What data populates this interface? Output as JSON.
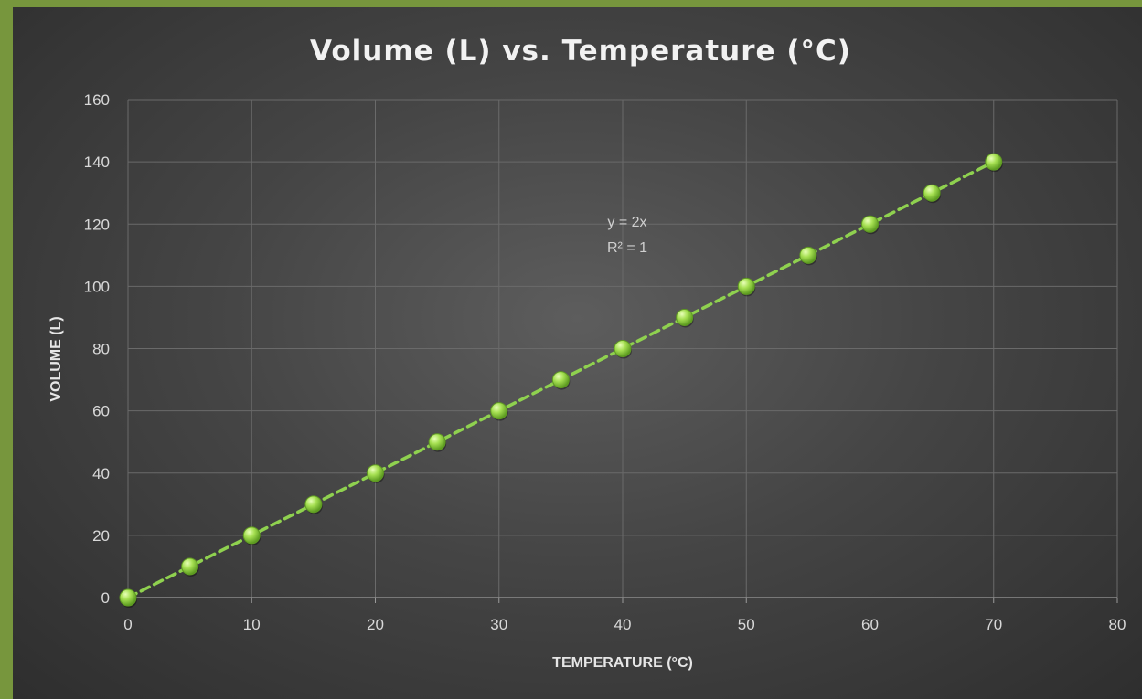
{
  "chart_data": {
    "type": "scatter",
    "title": "Volume (L) vs. Temperature (°C)",
    "xlabel": "TEMPERATURE (°C)",
    "ylabel": "VOLUME (L)",
    "xlim": [
      0,
      80
    ],
    "ylim": [
      0,
      160
    ],
    "x_ticks": [
      "0",
      "10",
      "20",
      "30",
      "40",
      "50",
      "60",
      "70",
      "80"
    ],
    "y_ticks": [
      "0",
      "20",
      "40",
      "60",
      "80",
      "100",
      "120",
      "140",
      "160"
    ],
    "grid": true,
    "series": [
      {
        "x": [
          0,
          5,
          10,
          15,
          20,
          25,
          30,
          35,
          40,
          45,
          50,
          55,
          60,
          65,
          70
        ],
        "y": [
          0,
          10,
          20,
          30,
          40,
          50,
          60,
          70,
          80,
          90,
          100,
          110,
          120,
          130,
          140
        ],
        "color": "#9bd94a"
      }
    ],
    "trendline": {
      "type": "linear",
      "slope": 2,
      "intercept": 0,
      "style": "dashed",
      "color": "#8fd14f",
      "equation": "y = 2x",
      "r_squared": "R² = 1"
    },
    "background_color": "#454545",
    "border_color": "#77963d"
  }
}
